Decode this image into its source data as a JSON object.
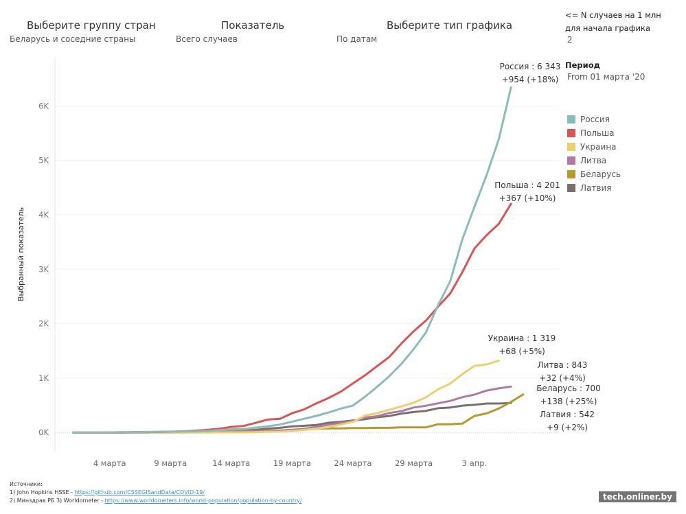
{
  "controls": {
    "group": {
      "title": "Выберите группу стран",
      "value": "Беларусь и соседние страны"
    },
    "indicator": {
      "title": "Показатель",
      "value": "Всего случаев"
    },
    "chart_type": {
      "title": "Выберите тип графика",
      "value": "По датам"
    }
  },
  "side": {
    "threshold_title_1": "<= N случаев на 1 млн",
    "threshold_title_2": "для начала графика",
    "threshold_value": "2",
    "period_title": "Период",
    "period_value": "From 01 марта '20"
  },
  "sources": {
    "heading": "Источники:",
    "line1_text": "1) John Hopkins HSSE - ",
    "line1_link": "https://github.com/CSSEGISandData/COVID-19/",
    "line2_text": "2) Минздрав РБ    3) Worldometer - ",
    "line2_link": "https://www.worldometers.info/world-population/population-by-country/"
  },
  "watermark": "tech.onliner.by",
  "chart_data": {
    "type": "line",
    "ylabel": "Выбранный показатель",
    "xlabel": "",
    "ylim": [
      -350,
      6900
    ],
    "xlim": [
      -1.5,
      40
    ],
    "y_ticks": [
      {
        "value": 0,
        "label": "0K"
      },
      {
        "value": 1000,
        "label": "1K"
      },
      {
        "value": 2000,
        "label": "2K"
      },
      {
        "value": 3000,
        "label": "3K"
      },
      {
        "value": 4000,
        "label": "4K"
      },
      {
        "value": 5000,
        "label": "5K"
      },
      {
        "value": 6000,
        "label": "6K"
      }
    ],
    "x_ticks": [
      {
        "day": 3,
        "label": "4 марта"
      },
      {
        "day": 8,
        "label": "9 марта"
      },
      {
        "day": 13,
        "label": "14 марта"
      },
      {
        "day": 18,
        "label": "19 марта"
      },
      {
        "day": 23,
        "label": "24 марта"
      },
      {
        "day": 28,
        "label": "29 марта"
      },
      {
        "day": 33,
        "label": "3 апр."
      }
    ],
    "x_note": "x values are day offsets from 1 марта (0 = 1 марта)",
    "grid": "horizontal",
    "legend_position": "right",
    "series": [
      {
        "name": "Россия",
        "color": "#88bdb9",
        "label_1": "Россия : 6 343",
        "label_2": "+954 (+18%)",
        "values": [
          [
            0,
            3
          ],
          [
            1,
            3
          ],
          [
            2,
            3
          ],
          [
            3,
            3
          ],
          [
            4,
            4
          ],
          [
            5,
            6
          ],
          [
            6,
            10
          ],
          [
            7,
            14
          ],
          [
            8,
            17
          ],
          [
            9,
            20
          ],
          [
            10,
            20
          ],
          [
            11,
            28
          ],
          [
            12,
            45
          ],
          [
            13,
            59
          ],
          [
            14,
            63
          ],
          [
            15,
            90
          ],
          [
            16,
            114
          ],
          [
            17,
            147
          ],
          [
            18,
            199
          ],
          [
            19,
            253
          ],
          [
            20,
            306
          ],
          [
            21,
            367
          ],
          [
            22,
            438
          ],
          [
            23,
            495
          ],
          [
            24,
            658
          ],
          [
            25,
            840
          ],
          [
            26,
            1036
          ],
          [
            27,
            1264
          ],
          [
            28,
            1534
          ],
          [
            29,
            1836
          ],
          [
            30,
            2337
          ],
          [
            31,
            2777
          ],
          [
            32,
            3548
          ],
          [
            33,
            4149
          ],
          [
            34,
            4731
          ],
          [
            35,
            5389
          ],
          [
            36,
            6343
          ]
        ]
      },
      {
        "name": "Польша",
        "color": "#d95553",
        "label_1": "Польша : 4 201",
        "label_2": "+367 (+10%)",
        "values": [
          [
            0,
            0
          ],
          [
            1,
            0
          ],
          [
            2,
            0
          ],
          [
            3,
            1
          ],
          [
            4,
            1
          ],
          [
            5,
            5
          ],
          [
            6,
            5
          ],
          [
            7,
            11
          ],
          [
            8,
            16
          ],
          [
            9,
            22
          ],
          [
            10,
            31
          ],
          [
            11,
            49
          ],
          [
            12,
            68
          ],
          [
            13,
            103
          ],
          [
            14,
            119
          ],
          [
            15,
            177
          ],
          [
            16,
            238
          ],
          [
            17,
            251
          ],
          [
            18,
            355
          ],
          [
            19,
            425
          ],
          [
            20,
            536
          ],
          [
            21,
            634
          ],
          [
            22,
            749
          ],
          [
            23,
            901
          ],
          [
            24,
            1051
          ],
          [
            25,
            1221
          ],
          [
            26,
            1389
          ],
          [
            27,
            1638
          ],
          [
            28,
            1862
          ],
          [
            29,
            2055
          ],
          [
            30,
            2311
          ],
          [
            31,
            2554
          ],
          [
            32,
            2946
          ],
          [
            33,
            3383
          ],
          [
            34,
            3627
          ],
          [
            35,
            3834
          ],
          [
            36,
            4201
          ]
        ]
      },
      {
        "name": "Украина",
        "color": "#ecd06f",
        "label_1": "Украина : 1 319",
        "label_2": "+68 (+5%)",
        "values": [
          [
            0,
            0
          ],
          [
            1,
            0
          ],
          [
            2,
            0
          ],
          [
            3,
            1
          ],
          [
            4,
            1
          ],
          [
            5,
            1
          ],
          [
            6,
            1
          ],
          [
            7,
            1
          ],
          [
            8,
            1
          ],
          [
            9,
            1
          ],
          [
            10,
            1
          ],
          [
            11,
            1
          ],
          [
            12,
            2
          ],
          [
            13,
            3
          ],
          [
            14,
            3
          ],
          [
            15,
            7
          ],
          [
            16,
            14
          ],
          [
            17,
            16
          ],
          [
            18,
            29
          ],
          [
            19,
            47
          ],
          [
            20,
            73
          ],
          [
            21,
            97
          ],
          [
            22,
            145
          ],
          [
            23,
            196
          ],
          [
            24,
            310
          ],
          [
            25,
            356
          ],
          [
            26,
            418
          ],
          [
            27,
            480
          ],
          [
            28,
            548
          ],
          [
            29,
            645
          ],
          [
            30,
            794
          ],
          [
            31,
            897
          ],
          [
            32,
            1072
          ],
          [
            33,
            1225
          ],
          [
            34,
            1251
          ],
          [
            35,
            1319
          ]
        ]
      },
      {
        "name": "Литва",
        "color": "#b07aa1",
        "label_1": "Литва : 843",
        "label_2": "+32 (+4%)",
        "values": [
          [
            0,
            1
          ],
          [
            1,
            1
          ],
          [
            2,
            1
          ],
          [
            3,
            1
          ],
          [
            4,
            1
          ],
          [
            5,
            1
          ],
          [
            6,
            1
          ],
          [
            7,
            1
          ],
          [
            8,
            1
          ],
          [
            9,
            2
          ],
          [
            10,
            3
          ],
          [
            11,
            6
          ],
          [
            12,
            8
          ],
          [
            13,
            12
          ],
          [
            14,
            17
          ],
          [
            15,
            25
          ],
          [
            16,
            27
          ],
          [
            17,
            36
          ],
          [
            18,
            49
          ],
          [
            19,
            69
          ],
          [
            20,
            105
          ],
          [
            21,
            143
          ],
          [
            22,
            179
          ],
          [
            23,
            209
          ],
          [
            24,
            274
          ],
          [
            25,
            299
          ],
          [
            26,
            358
          ],
          [
            27,
            394
          ],
          [
            28,
            460
          ],
          [
            29,
            491
          ],
          [
            30,
            537
          ],
          [
            31,
            581
          ],
          [
            32,
            649
          ],
          [
            33,
            696
          ],
          [
            34,
            771
          ],
          [
            35,
            811
          ],
          [
            36,
            843
          ]
        ]
      },
      {
        "name": "Беларусь",
        "color": "#b5992f",
        "label_1": "Беларусь : 700",
        "label_2": "+138 (+25%)",
        "values": [
          [
            0,
            1
          ],
          [
            1,
            1
          ],
          [
            2,
            1
          ],
          [
            3,
            1
          ],
          [
            4,
            6
          ],
          [
            5,
            6
          ],
          [
            6,
            6
          ],
          [
            7,
            6
          ],
          [
            8,
            6
          ],
          [
            9,
            9
          ],
          [
            10,
            9
          ],
          [
            11,
            9
          ],
          [
            12,
            12
          ],
          [
            13,
            27
          ],
          [
            14,
            27
          ],
          [
            15,
            27
          ],
          [
            16,
            36
          ],
          [
            17,
            36
          ],
          [
            18,
            51
          ],
          [
            19,
            51
          ],
          [
            20,
            69
          ],
          [
            21,
            76
          ],
          [
            22,
            76
          ],
          [
            23,
            81
          ],
          [
            24,
            81
          ],
          [
            25,
            86
          ],
          [
            26,
            86
          ],
          [
            27,
            94
          ],
          [
            28,
            94
          ],
          [
            29,
            94
          ],
          [
            30,
            152
          ],
          [
            31,
            152
          ],
          [
            32,
            163
          ],
          [
            33,
            304
          ],
          [
            34,
            351
          ],
          [
            35,
            440
          ],
          [
            36,
            562
          ],
          [
            37,
            700
          ]
        ]
      },
      {
        "name": "Латвия",
        "color": "#79706e",
        "label_1": "Латвия : 542",
        "label_2": "+9 (+2%)",
        "values": [
          [
            0,
            0
          ],
          [
            1,
            0
          ],
          [
            2,
            1
          ],
          [
            3,
            1
          ],
          [
            4,
            1
          ],
          [
            5,
            1
          ],
          [
            6,
            2
          ],
          [
            7,
            6
          ],
          [
            8,
            8
          ],
          [
            9,
            10
          ],
          [
            10,
            10
          ],
          [
            11,
            16
          ],
          [
            12,
            26
          ],
          [
            13,
            30
          ],
          [
            14,
            34
          ],
          [
            15,
            49
          ],
          [
            16,
            71
          ],
          [
            17,
            86
          ],
          [
            18,
            111
          ],
          [
            19,
            124
          ],
          [
            20,
            139
          ],
          [
            21,
            180
          ],
          [
            22,
            197
          ],
          [
            23,
            221
          ],
          [
            24,
            244
          ],
          [
            25,
            280
          ],
          [
            26,
            305
          ],
          [
            27,
            347
          ],
          [
            28,
            376
          ],
          [
            29,
            398
          ],
          [
            30,
            446
          ],
          [
            31,
            458
          ],
          [
            32,
            493
          ],
          [
            33,
            509
          ],
          [
            34,
            533
          ],
          [
            35,
            533
          ],
          [
            36,
            542
          ]
        ]
      }
    ]
  }
}
